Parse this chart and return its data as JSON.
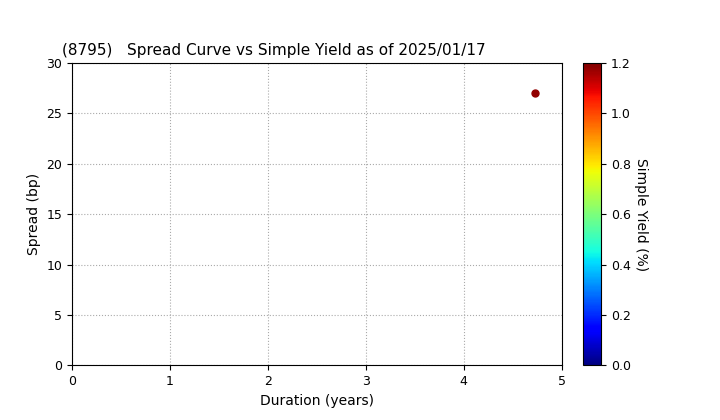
{
  "title": "(8795)   Spread Curve vs Simple Yield as of 2025/01/17",
  "xlabel": "Duration (years)",
  "ylabel": "Spread (bp)",
  "colorbar_label": "Simple Yield (%)",
  "xlim": [
    0,
    5
  ],
  "ylim": [
    0,
    30
  ],
  "xticks": [
    0,
    1,
    2,
    3,
    4,
    5
  ],
  "yticks": [
    0,
    5,
    10,
    15,
    20,
    25,
    30
  ],
  "grid_color": "#aaaaaa",
  "colorbar_min": 0.0,
  "colorbar_max": 1.2,
  "colorbar_ticks": [
    0.0,
    0.2,
    0.4,
    0.6,
    0.8,
    1.0,
    1.2
  ],
  "data_points": [
    {
      "duration": 4.73,
      "spread": 27.0,
      "simple_yield": 1.18
    }
  ],
  "background_color": "#ffffff",
  "title_fontsize": 11,
  "axis_label_fontsize": 10,
  "tick_fontsize": 9
}
